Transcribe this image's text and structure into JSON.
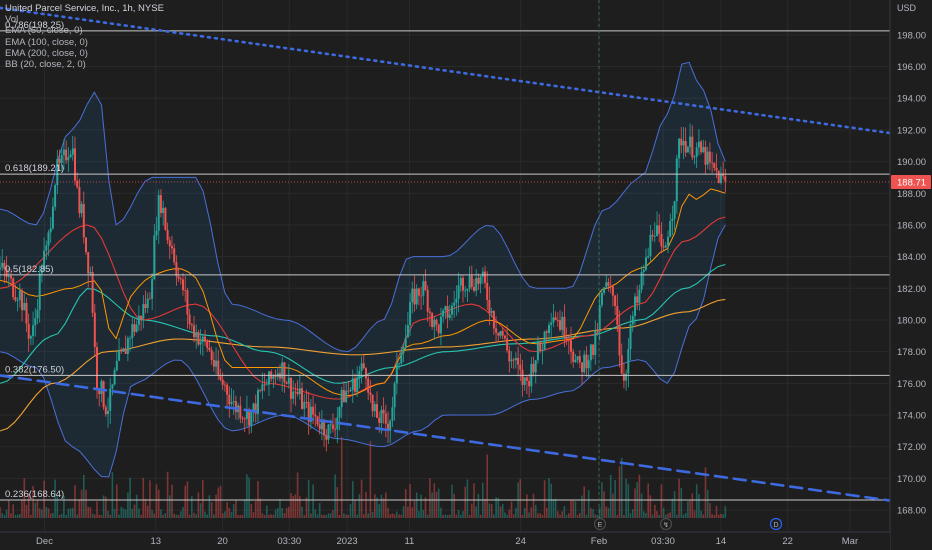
{
  "chart_data": {
    "type": "candlestick",
    "title": "United Parcel Service, Inc., 1h, NYSE",
    "legend": [
      "Vol",
      "EMA (50, close, 0)",
      "EMA (100, close, 0)",
      "EMA (200, close, 0)",
      "BB (20, close, 2, 0)"
    ],
    "currency": "USD",
    "price_label": "188.71",
    "last_price": 188.71,
    "ylim": [
      167.5,
      200.2
    ],
    "y_ticks": [
      "198.00",
      "196.00",
      "194.00",
      "192.00",
      "190.00",
      "188.00",
      "186.00",
      "184.00",
      "182.00",
      "180.00",
      "178.00",
      "176.00",
      "174.00",
      "172.00",
      "170.00",
      "168.00"
    ],
    "x_ticks": [
      "Dec",
      "13",
      "20",
      "03:30",
      "2023",
      "11",
      "24",
      "Feb",
      "03:30",
      "14",
      "22",
      "Mar"
    ],
    "fib_levels": [
      {
        "label": "0.786(198.25)",
        "value": 198.25
      },
      {
        "label": "0.618(189.21)",
        "value": 189.21
      },
      {
        "label": "0.5(182.85)",
        "value": 182.85
      },
      {
        "label": "0.382(176.50)",
        "value": 176.5
      },
      {
        "label": "0.236(168.64)",
        "value": 168.64
      }
    ],
    "trendlines": [
      {
        "style": "dotted",
        "from": [
          0,
          199.7
        ],
        "to": [
          1,
          191.8
        ]
      },
      {
        "style": "dashed",
        "from": [
          0,
          176.5
        ],
        "to": [
          1,
          168.6
        ]
      }
    ],
    "price_anchors": [
      [
        0,
        183.2
      ],
      [
        0.02,
        181.8
      ],
      [
        0.035,
        179.0
      ],
      [
        0.05,
        184.0
      ],
      [
        0.065,
        189.5
      ],
      [
        0.08,
        191.0
      ],
      [
        0.09,
        187.0
      ],
      [
        0.1,
        183.5
      ],
      [
        0.11,
        176.0
      ],
      [
        0.12,
        174.5
      ],
      [
        0.135,
        177.5
      ],
      [
        0.15,
        179.5
      ],
      [
        0.165,
        181.0
      ],
      [
        0.18,
        187.5
      ],
      [
        0.19,
        185.0
      ],
      [
        0.205,
        182.0
      ],
      [
        0.215,
        179.5
      ],
      [
        0.23,
        178.5
      ],
      [
        0.25,
        176.0
      ],
      [
        0.265,
        174.5
      ],
      [
        0.28,
        174.0
      ],
      [
        0.3,
        176.0
      ],
      [
        0.315,
        177.0
      ],
      [
        0.33,
        175.5
      ],
      [
        0.35,
        174.0
      ],
      [
        0.37,
        173.0
      ],
      [
        0.39,
        175.5
      ],
      [
        0.41,
        177.0
      ],
      [
        0.42,
        174.0
      ],
      [
        0.435,
        173.5
      ],
      [
        0.455,
        179.0
      ],
      [
        0.465,
        181.5
      ],
      [
        0.475,
        182.0
      ],
      [
        0.49,
        179.5
      ],
      [
        0.505,
        180.5
      ],
      [
        0.52,
        182.5
      ],
      [
        0.54,
        182.5
      ],
      [
        0.56,
        179.5
      ],
      [
        0.575,
        177.5
      ],
      [
        0.59,
        176.0
      ],
      [
        0.605,
        178.0
      ],
      [
        0.62,
        180.5
      ],
      [
        0.635,
        179.5
      ],
      [
        0.65,
        177.0
      ],
      [
        0.665,
        178.0
      ],
      [
        0.68,
        182.0
      ],
      [
        0.69,
        181.5
      ],
      [
        0.7,
        176.5
      ],
      [
        0.715,
        181.0
      ],
      [
        0.725,
        183.5
      ],
      [
        0.735,
        186.0
      ],
      [
        0.745,
        184.0
      ],
      [
        0.755,
        187.0
      ],
      [
        0.765,
        191.5
      ],
      [
        0.775,
        191.0
      ],
      [
        0.79,
        190.5
      ],
      [
        0.8,
        189.5
      ],
      [
        0.815,
        188.7
      ]
    ],
    "ema50_anchors": [
      [
        0,
        182
      ],
      [
        0.1,
        186
      ],
      [
        0.16,
        180
      ],
      [
        0.22,
        181
      ],
      [
        0.3,
        176
      ],
      [
        0.38,
        175
      ],
      [
        0.43,
        176
      ],
      [
        0.47,
        180
      ],
      [
        0.53,
        181
      ],
      [
        0.6,
        178
      ],
      [
        0.66,
        179
      ],
      [
        0.72,
        181
      ],
      [
        0.77,
        185
      ],
      [
        0.815,
        186.5
      ]
    ],
    "ema100_anchors": [
      [
        0,
        176
      ],
      [
        0.06,
        179
      ],
      [
        0.1,
        182
      ],
      [
        0.16,
        180
      ],
      [
        0.24,
        179
      ],
      [
        0.3,
        178
      ],
      [
        0.38,
        176
      ],
      [
        0.44,
        177
      ],
      [
        0.5,
        178
      ],
      [
        0.58,
        178.5
      ],
      [
        0.66,
        179
      ],
      [
        0.72,
        180
      ],
      [
        0.77,
        182
      ],
      [
        0.815,
        183.5
      ]
    ],
    "ema200_anchors": [
      [
        0,
        173
      ],
      [
        0.06,
        176
      ],
      [
        0.12,
        178
      ],
      [
        0.2,
        178.8
      ],
      [
        0.3,
        178.3
      ],
      [
        0.4,
        177.8
      ],
      [
        0.5,
        178.3
      ],
      [
        0.6,
        178.8
      ],
      [
        0.7,
        179.5
      ],
      [
        0.77,
        180.5
      ],
      [
        0.815,
        181.3
      ]
    ],
    "bb_upper_anchors": [
      [
        0,
        187
      ],
      [
        0.04,
        186
      ],
      [
        0.08,
        192
      ],
      [
        0.11,
        194.5
      ],
      [
        0.13,
        186
      ],
      [
        0.17,
        189
      ],
      [
        0.22,
        189
      ],
      [
        0.26,
        181
      ],
      [
        0.32,
        180
      ],
      [
        0.39,
        178
      ],
      [
        0.43,
        180
      ],
      [
        0.46,
        184
      ],
      [
        0.5,
        184
      ],
      [
        0.55,
        186
      ],
      [
        0.6,
        182
      ],
      [
        0.64,
        182
      ],
      [
        0.68,
        187
      ],
      [
        0.72,
        189
      ],
      [
        0.75,
        193
      ],
      [
        0.77,
        196.5
      ],
      [
        0.79,
        194.5
      ],
      [
        0.815,
        190
      ]
    ],
    "bb_lower_anchors": [
      [
        0,
        178
      ],
      [
        0.04,
        177
      ],
      [
        0.08,
        172
      ],
      [
        0.12,
        170
      ],
      [
        0.15,
        176
      ],
      [
        0.2,
        177.5
      ],
      [
        0.26,
        173
      ],
      [
        0.32,
        174
      ],
      [
        0.38,
        172.5
      ],
      [
        0.43,
        172
      ],
      [
        0.47,
        173
      ],
      [
        0.5,
        174
      ],
      [
        0.55,
        174
      ],
      [
        0.6,
        175
      ],
      [
        0.64,
        175.5
      ],
      [
        0.68,
        177
      ],
      [
        0.72,
        177.5
      ],
      [
        0.75,
        176
      ],
      [
        0.78,
        180
      ],
      [
        0.815,
        186
      ]
    ],
    "volume_max": 100
  }
}
